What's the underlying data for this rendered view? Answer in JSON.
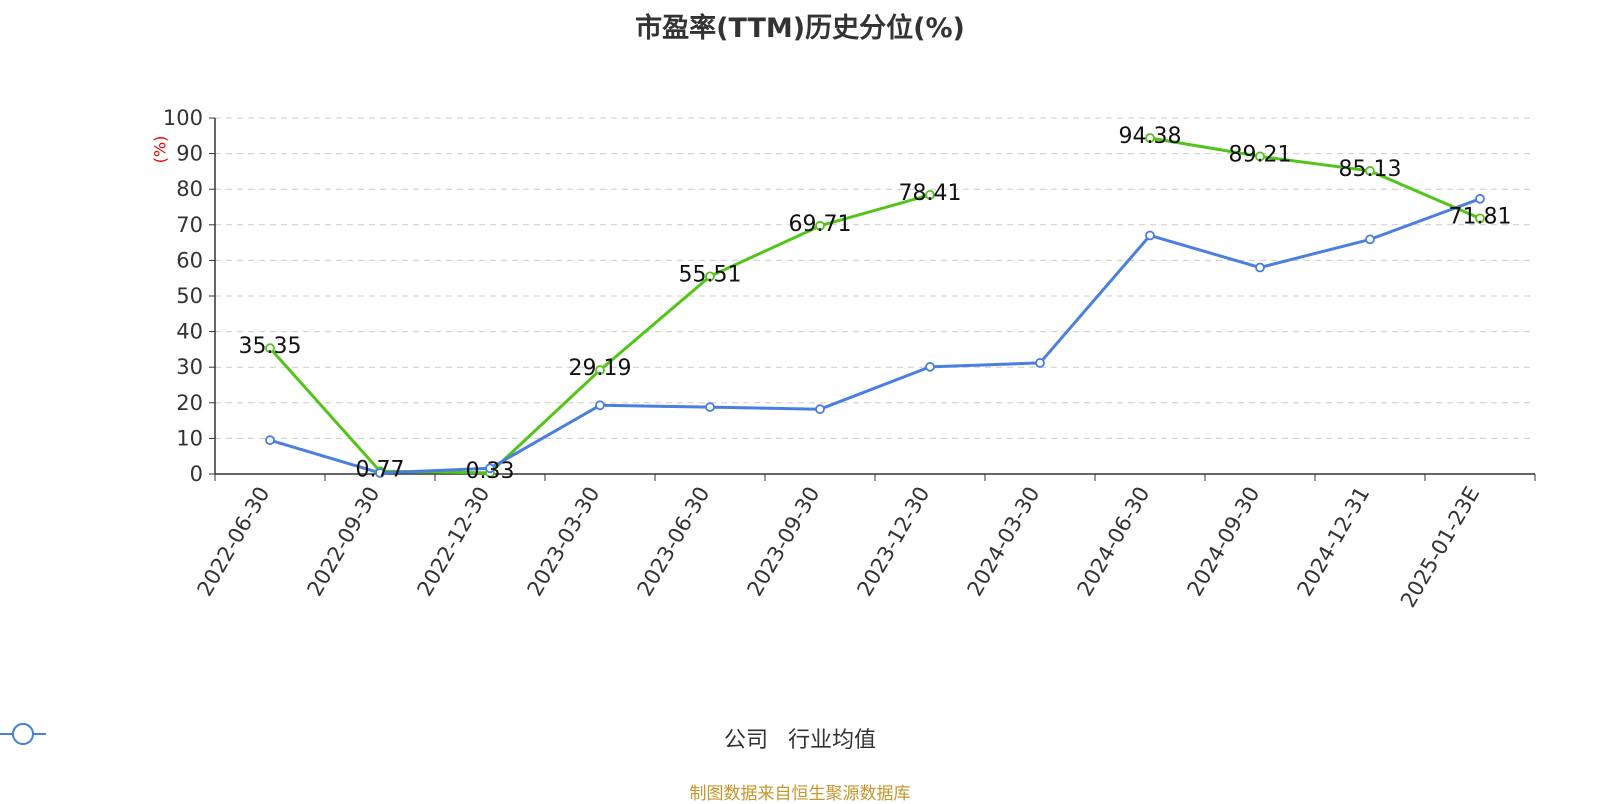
{
  "chart_data": {
    "type": "line",
    "title": "市盈率(TTM)历史分位(%)",
    "ylabel": "(%)",
    "ylim": [
      0,
      100
    ],
    "yticks": [
      0,
      10,
      20,
      30,
      40,
      50,
      60,
      70,
      80,
      90,
      100
    ],
    "grid": true,
    "legend_position": "bottom",
    "categories": [
      "2022-06-30",
      "2022-09-30",
      "2022-12-30",
      "2023-03-30",
      "2023-06-30",
      "2023-09-30",
      "2023-12-30",
      "2024-03-30",
      "2024-06-30",
      "2024-09-30",
      "2024-12-31",
      "2025-01-23E"
    ],
    "series": [
      {
        "name": "公司",
        "color": "#52c41a",
        "values": [
          35.35,
          0.77,
          0.33,
          29.19,
          55.51,
          69.71,
          78.41,
          null,
          94.38,
          89.21,
          85.13,
          71.81
        ],
        "labels": [
          "35.35",
          "0.77",
          "0.33",
          "29.19",
          "55.51",
          "69.71",
          "78.41",
          null,
          "94.38",
          "89.21",
          "85.13",
          "71.81"
        ]
      },
      {
        "name": "行业均值",
        "color": "#4a7fe0",
        "values": [
          9.5,
          0.3,
          1.6,
          19.3,
          18.8,
          18.2,
          30.1,
          31.2,
          67.0,
          58.0,
          65.9,
          77.3
        ]
      }
    ]
  },
  "source": "制图数据来自恒生聚源数据库"
}
